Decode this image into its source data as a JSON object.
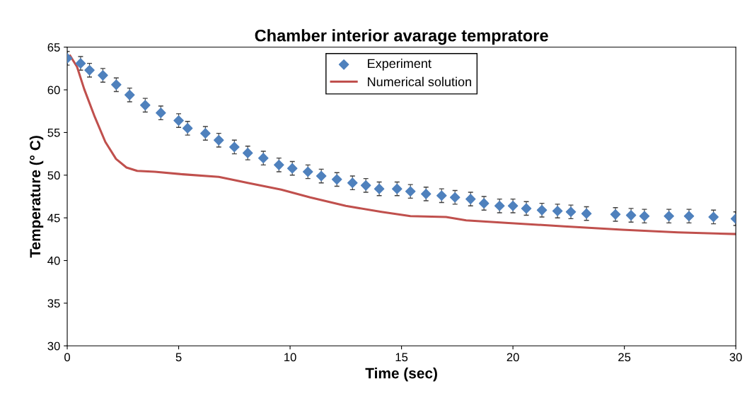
{
  "chart_data": {
    "type": "scatter",
    "title": "Chamber interior avarage tempratore",
    "xlabel": "Time (sec)",
    "ylabel": "Temperature (° C)",
    "xlim": [
      0,
      30
    ],
    "xticks": [
      0,
      5,
      10,
      15,
      20,
      25,
      30
    ],
    "ylim": [
      30,
      65
    ],
    "yticks": [
      30,
      35,
      40,
      45,
      50,
      55,
      60,
      65
    ],
    "grid": false,
    "legend": "top",
    "series": [
      {
        "name": "Experiment",
        "color": "#4f81bd",
        "marker": "diamond",
        "x": [
          0,
          0.6,
          1.0,
          1.6,
          2.2,
          2.8,
          3.5,
          4.2,
          5.0,
          5.4,
          6.2,
          6.8,
          7.5,
          8.1,
          8.8,
          9.5,
          10.1,
          10.8,
          11.4,
          12.1,
          12.8,
          13.4,
          14.0,
          14.8,
          15.4,
          16.1,
          16.8,
          17.4,
          18.1,
          18.7,
          19.4,
          20.0,
          20.6,
          21.3,
          22.0,
          22.6,
          23.3,
          24.6,
          25.3,
          25.9,
          27.0,
          27.9,
          29.0,
          30.0
        ],
        "values": [
          63.7,
          63.1,
          62.3,
          61.7,
          60.6,
          59.4,
          58.2,
          57.3,
          56.4,
          55.5,
          54.9,
          54.1,
          53.3,
          52.6,
          52.0,
          51.2,
          50.8,
          50.4,
          49.9,
          49.5,
          49.1,
          48.8,
          48.4,
          48.4,
          48.1,
          47.8,
          47.6,
          47.4,
          47.2,
          46.7,
          46.4,
          46.4,
          46.1,
          45.9,
          45.8,
          45.7,
          45.5,
          45.4,
          45.3,
          45.2,
          45.2,
          45.2,
          45.1,
          44.9
        ],
        "errors": [
          0.8,
          0.8,
          0.8,
          0.8,
          0.8,
          0.8,
          0.8,
          0.8,
          0.8,
          0.8,
          0.8,
          0.8,
          0.8,
          0.8,
          0.8,
          0.8,
          0.8,
          0.8,
          0.8,
          0.8,
          0.8,
          0.8,
          0.8,
          0.8,
          0.8,
          0.8,
          0.8,
          0.8,
          0.8,
          0.8,
          0.8,
          0.8,
          0.8,
          0.8,
          0.8,
          0.8,
          0.8,
          0.8,
          0.8,
          0.8,
          0.8,
          0.8,
          0.8,
          0.8
        ]
      },
      {
        "name": "Numerical solution",
        "type": "line",
        "color": "#c0504d",
        "marker": "none",
        "line_style": "solid",
        "x": [
          0.13,
          0.44,
          0.76,
          1.24,
          1.71,
          2.19,
          2.66,
          3.14,
          3.93,
          5.2,
          6.8,
          8.1,
          9.6,
          10.9,
          12.5,
          14.1,
          15.4,
          17.0,
          17.9,
          19.8,
          22.3,
          24.9,
          27.4,
          30.0
        ],
        "values": [
          64.0,
          62.7,
          60.1,
          56.8,
          53.9,
          51.9,
          50.9,
          50.5,
          50.4,
          50.1,
          49.8,
          49.1,
          48.3,
          47.4,
          46.4,
          45.7,
          45.2,
          45.1,
          44.7,
          44.4,
          44.0,
          43.6,
          43.3,
          43.1
        ]
      }
    ]
  }
}
